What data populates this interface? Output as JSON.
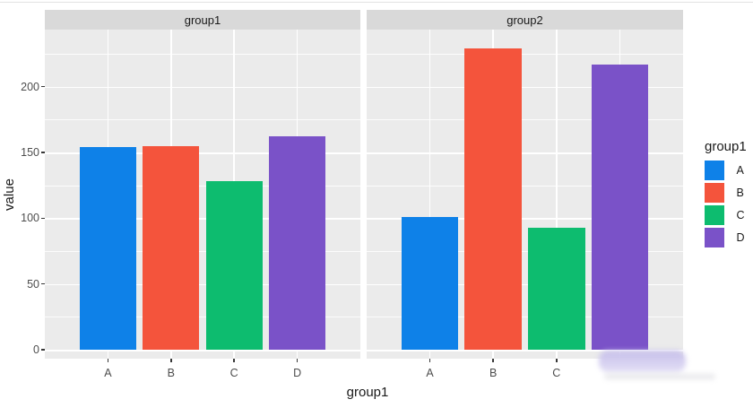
{
  "colors": {
    "page_bg": "#FFFFFF",
    "panel_bg": "#EBEBEB",
    "strip_bg": "#D9D9D9",
    "gridline": "#FFFFFF",
    "tick_text": "#4D4D4D",
    "title_text": "#1A1A1A",
    "smudge_artifact": "#C4BCEA"
  },
  "chart_data": {
    "type": "bar",
    "xlabel": "group1",
    "ylabel": "value",
    "grid": true,
    "y_ticks": [
      0,
      50,
      100,
      150,
      200
    ],
    "y_minor_ticks": [
      25,
      75,
      125,
      175,
      225
    ],
    "ylim": [
      0,
      243
    ],
    "facets": [
      {
        "label": "group1",
        "categories": [
          "A",
          "B",
          "C",
          "D"
        ],
        "values": [
          154,
          155,
          128,
          162
        ],
        "x_labels_shown": [
          "A",
          "B",
          "C",
          "D"
        ]
      },
      {
        "label": "group2",
        "categories": [
          "A",
          "B",
          "C",
          "D"
        ],
        "values": [
          101,
          229,
          93,
          217
        ],
        "x_labels_shown": [
          "A",
          "B",
          "C"
        ]
      }
    ],
    "legend": {
      "title": "group1",
      "position": "right",
      "entries": [
        {
          "label": "A",
          "color": "#0E81E8"
        },
        {
          "label": "B",
          "color": "#F4543C"
        },
        {
          "label": "C",
          "color": "#0DBC6F"
        },
        {
          "label": "D",
          "color": "#7A52C8"
        }
      ]
    }
  }
}
